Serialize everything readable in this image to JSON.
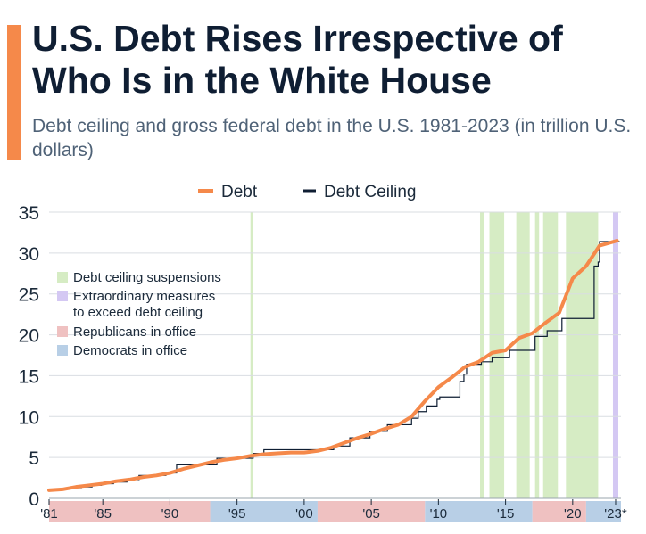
{
  "title": "U.S. Debt Rises Irrespective of Who Is in the White House",
  "subtitle": "Debt ceiling and gross federal debt in the U.S. 1981-2023 (in trillion U.S. dollars)",
  "colors": {
    "debt": "#f5894a",
    "ceiling": "#0f1e33",
    "suspension": "#d6ecc4",
    "extraordinary": "#d4c8f3",
    "republican": "#efc1c1",
    "democrat": "#b8cfe6",
    "grid": "#d9dde2",
    "accent": "#f5894a"
  },
  "chart_data": {
    "type": "line",
    "legend_top": [
      {
        "name": "Debt",
        "color": "#f5894a",
        "kind": "line"
      },
      {
        "name": "Debt Ceiling",
        "color": "#0f1e33",
        "kind": "step"
      }
    ],
    "legend_inset": [
      {
        "name": "Debt ceiling suspensions",
        "color": "#d6ecc4"
      },
      {
        "name": "Extraordinary measures to exceed debt ceiling",
        "color": "#d4c8f3"
      },
      {
        "name": "Republicans in office",
        "color": "#efc1c1"
      },
      {
        "name": "Democrats in office",
        "color": "#b8cfe6"
      }
    ],
    "ylim": [
      0,
      35
    ],
    "yticks": [
      0,
      5,
      10,
      15,
      20,
      25,
      30,
      35
    ],
    "xlim": [
      1981,
      2023.6
    ],
    "xticks": [
      {
        "value": 1981,
        "label": "'81"
      },
      {
        "value": 1985,
        "label": "'85"
      },
      {
        "value": 1990,
        "label": "'90"
      },
      {
        "value": 1995,
        "label": "'95"
      },
      {
        "value": 2000,
        "label": "'00"
      },
      {
        "value": 2005,
        "label": "'05"
      },
      {
        "value": 2010,
        "label": "'10"
      },
      {
        "value": 2015,
        "label": "'15"
      },
      {
        "value": 2020,
        "label": "'20"
      },
      {
        "value": 2023.2,
        "label": "'23*"
      }
    ],
    "debt_series": {
      "name": "Debt",
      "x": [
        1981,
        1982,
        1983,
        1984,
        1985,
        1986,
        1987,
        1988,
        1989,
        1990,
        1991,
        1992,
        1993,
        1994,
        1995,
        1996,
        1997,
        1998,
        1999,
        2000,
        2001,
        2002,
        2003,
        2004,
        2005,
        2006,
        2007,
        2008,
        2009,
        2010,
        2011,
        2012,
        2013,
        2014,
        2015,
        2016,
        2017,
        2018,
        2019,
        2020,
        2021,
        2022,
        2023.3
      ],
      "values": [
        1.0,
        1.1,
        1.4,
        1.6,
        1.8,
        2.1,
        2.3,
        2.6,
        2.8,
        3.1,
        3.6,
        4.0,
        4.4,
        4.7,
        4.9,
        5.2,
        5.4,
        5.5,
        5.6,
        5.6,
        5.8,
        6.2,
        6.8,
        7.4,
        7.9,
        8.5,
        9.0,
        10.0,
        11.9,
        13.6,
        14.8,
        16.1,
        16.7,
        17.8,
        18.1,
        19.6,
        20.2,
        21.5,
        22.7,
        26.9,
        28.4,
        30.9,
        31.5
      ]
    },
    "ceiling_series": {
      "name": "Debt Ceiling",
      "x": [
        1981.0,
        1981.7,
        1982.5,
        1983.4,
        1984.2,
        1984.9,
        1985.8,
        1986.8,
        1987.7,
        1989.7,
        1990.5,
        1993.5,
        1996.2,
        1997.0,
        2002.2,
        2003.4,
        2004.9,
        2006.2,
        2008.0,
        2008.5,
        2009.1,
        2009.9,
        2010.1,
        2011.6,
        2011.9,
        2012.1,
        2013.2,
        2014.0,
        2015.3,
        2016.0,
        2017.2,
        2018.1,
        2019.2,
        2021.6,
        2021.9,
        2022.0,
        2023.5
      ],
      "values": [
        1.0,
        1.1,
        1.3,
        1.4,
        1.6,
        1.8,
        2.0,
        2.3,
        2.8,
        3.1,
        4.1,
        4.9,
        5.5,
        5.95,
        6.4,
        7.4,
        8.2,
        9.0,
        9.8,
        10.6,
        11.3,
        12.1,
        12.4,
        14.3,
        15.2,
        16.4,
        16.7,
        17.2,
        18.1,
        18.1,
        19.8,
        20.5,
        22.0,
        28.4,
        28.9,
        31.4,
        31.4
      ]
    },
    "suspensions": [
      [
        1996.0,
        1996.2
      ],
      [
        2013.1,
        2013.4
      ],
      [
        2013.8,
        2014.9
      ],
      [
        2015.8,
        2016.8
      ],
      [
        2017.2,
        2017.5
      ],
      [
        2017.8,
        2018.9
      ],
      [
        2019.5,
        2021.9
      ]
    ],
    "extraordinary_measures": [
      [
        2023.0,
        2023.4
      ]
    ],
    "administrations": [
      {
        "party": "R",
        "start": 1981,
        "end": 1993
      },
      {
        "party": "D",
        "start": 1993,
        "end": 2001
      },
      {
        "party": "R",
        "start": 2001,
        "end": 2009
      },
      {
        "party": "D",
        "start": 2009,
        "end": 2017
      },
      {
        "party": "R",
        "start": 2017,
        "end": 2021
      },
      {
        "party": "D",
        "start": 2021,
        "end": 2023.6
      }
    ]
  }
}
